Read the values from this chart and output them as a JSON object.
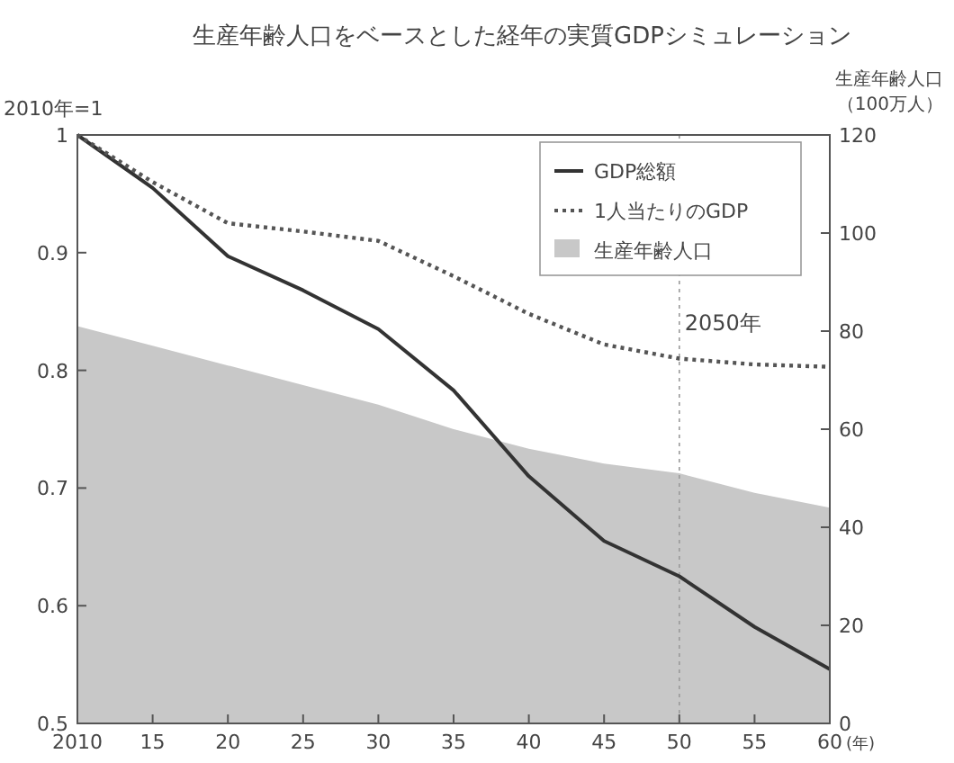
{
  "chart_data": {
    "type": "line",
    "title": "生産年齢人口をベースとした経年の実質GDPシミュレーション",
    "xlabel": "(年)",
    "ylabel": "2010年=1",
    "y2label": "生産年齢人口（100万人）",
    "x": [
      2010,
      2015,
      2020,
      2025,
      2030,
      2035,
      2040,
      2045,
      2050,
      2055,
      2060
    ],
    "series": [
      {
        "name": "GDP総額",
        "color": "#333333",
        "line_style": "solid",
        "values": [
          1.0,
          0.955,
          0.897,
          0.868,
          0.835,
          0.783,
          0.71,
          0.655,
          0.625,
          0.582,
          0.546
        ]
      },
      {
        "name": "1人当たりのGDP",
        "color": "#555555",
        "line_style": "dotted",
        "values": [
          1.0,
          0.96,
          0.925,
          0.918,
          0.91,
          0.88,
          0.848,
          0.822,
          0.81,
          0.805,
          0.803
        ]
      },
      {
        "name": "生産年齢人口",
        "type": "area",
        "axis": "y2",
        "color": "#c8c8c8",
        "values": [
          81,
          77,
          73,
          69,
          65,
          60,
          56,
          53,
          51,
          47,
          44
        ]
      }
    ],
    "xlim": [
      2010,
      2060
    ],
    "xticks": [
      2010,
      {
        "value": 2015,
        "label": "15"
      },
      {
        "value": 2020,
        "label": "20"
      },
      {
        "value": 2025,
        "label": "25"
      },
      {
        "value": 2030,
        "label": "30"
      },
      {
        "value": 2035,
        "label": "35"
      },
      {
        "value": 2040,
        "label": "40"
      },
      {
        "value": 2045,
        "label": "45"
      },
      {
        "value": 2050,
        "label": "50"
      },
      {
        "value": 2055,
        "label": "55"
      },
      {
        "value": 2060,
        "label": "60"
      }
    ],
    "ylim": [
      0.5,
      1
    ],
    "yticks": [
      0.5,
      0.6,
      0.7,
      0.8,
      0.9,
      1
    ],
    "y2lim": [
      0,
      120
    ],
    "y2ticks": [
      0,
      20,
      40,
      60,
      80,
      100,
      120
    ],
    "ref_lines": [
      {
        "axis": "x",
        "value": 2050,
        "label": "2050年",
        "line_style": "dotted"
      }
    ],
    "legend": "top right",
    "grid": false,
    "marker": "none"
  }
}
